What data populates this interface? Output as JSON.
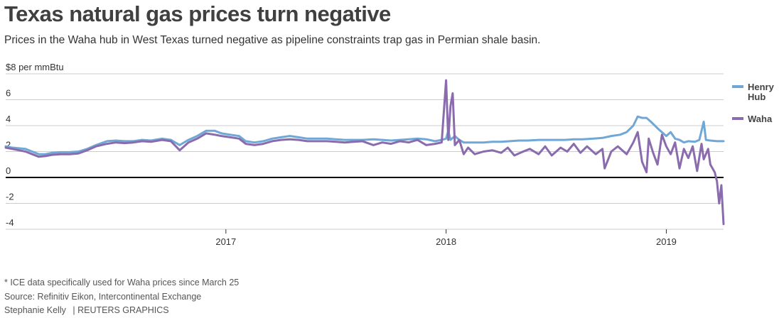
{
  "title": "Texas natural gas prices turn negative",
  "subtitle": "Prices in the Waha hub in West Texas turned negative as pipeline constraints trap gas in Permian shale basin.",
  "footer": {
    "note": "* ICE data specifically used for Waha prices since March 25",
    "source": "Source: Refinitiv Eikon, Intercontinental Exchange",
    "credit": "Stephanie Kelly",
    "agency": "| REUTERS GRAPHICS"
  },
  "colors": {
    "henry_hub": "#6FA8D6",
    "waha": "#8A6BAE",
    "zero_line": "#000000",
    "grid": "#cccccc"
  },
  "chart_data": {
    "type": "line",
    "title": "Texas natural gas prices turn negative",
    "ylabel": "$8 per mmBtu",
    "ylim": [
      -4,
      8
    ],
    "yticks": [
      {
        "value": 8,
        "label": "$8 per mmBtu"
      },
      {
        "value": 6,
        "label": "6"
      },
      {
        "value": 4,
        "label": "4"
      },
      {
        "value": 2,
        "label": "2"
      },
      {
        "value": 0,
        "label": "0"
      },
      {
        "value": -2,
        "label": "-2"
      },
      {
        "value": -4,
        "label": "-4"
      }
    ],
    "xlim": [
      2016.0,
      2019.26
    ],
    "xticks": [
      {
        "value": 2017,
        "label": "2017"
      },
      {
        "value": 2018,
        "label": "2018"
      },
      {
        "value": 2019,
        "label": "2019"
      }
    ],
    "grid": true,
    "legend_position": "right",
    "series": [
      {
        "name": "Henry Hub",
        "color": "#6FA8D6",
        "points": [
          [
            2016.0,
            2.4
          ],
          [
            2016.03,
            2.3
          ],
          [
            2016.06,
            2.25
          ],
          [
            2016.09,
            2.2
          ],
          [
            2016.12,
            2.0
          ],
          [
            2016.15,
            1.8
          ],
          [
            2016.18,
            1.8
          ],
          [
            2016.21,
            1.9
          ],
          [
            2016.25,
            1.95
          ],
          [
            2016.29,
            1.95
          ],
          [
            2016.33,
            2.0
          ],
          [
            2016.37,
            2.2
          ],
          [
            2016.41,
            2.5
          ],
          [
            2016.46,
            2.8
          ],
          [
            2016.5,
            2.85
          ],
          [
            2016.54,
            2.8
          ],
          [
            2016.58,
            2.8
          ],
          [
            2016.62,
            2.9
          ],
          [
            2016.66,
            2.85
          ],
          [
            2016.71,
            3.0
          ],
          [
            2016.75,
            2.9
          ],
          [
            2016.79,
            2.5
          ],
          [
            2016.83,
            2.9
          ],
          [
            2016.87,
            3.2
          ],
          [
            2016.91,
            3.6
          ],
          [
            2016.95,
            3.6
          ],
          [
            2016.98,
            3.4
          ],
          [
            2017.02,
            3.3
          ],
          [
            2017.06,
            3.2
          ],
          [
            2017.09,
            2.8
          ],
          [
            2017.13,
            2.7
          ],
          [
            2017.17,
            2.8
          ],
          [
            2017.21,
            3.0
          ],
          [
            2017.25,
            3.1
          ],
          [
            2017.29,
            3.2
          ],
          [
            2017.33,
            3.1
          ],
          [
            2017.37,
            3.0
          ],
          [
            2017.42,
            3.0
          ],
          [
            2017.46,
            3.0
          ],
          [
            2017.5,
            2.95
          ],
          [
            2017.54,
            2.9
          ],
          [
            2017.58,
            2.9
          ],
          [
            2017.62,
            2.9
          ],
          [
            2017.67,
            2.95
          ],
          [
            2017.71,
            2.9
          ],
          [
            2017.75,
            2.85
          ],
          [
            2017.79,
            2.9
          ],
          [
            2017.83,
            2.95
          ],
          [
            2017.87,
            3.0
          ],
          [
            2017.91,
            2.95
          ],
          [
            2017.95,
            2.8
          ],
          [
            2017.98,
            2.9
          ],
          [
            2018.0,
            3.0
          ],
          [
            2018.01,
            3.6
          ],
          [
            2018.02,
            2.9
          ],
          [
            2018.04,
            3.2
          ],
          [
            2018.06,
            2.9
          ],
          [
            2018.08,
            2.7
          ],
          [
            2018.12,
            2.7
          ],
          [
            2018.17,
            2.7
          ],
          [
            2018.21,
            2.75
          ],
          [
            2018.25,
            2.75
          ],
          [
            2018.29,
            2.8
          ],
          [
            2018.33,
            2.85
          ],
          [
            2018.37,
            2.85
          ],
          [
            2018.42,
            2.9
          ],
          [
            2018.46,
            2.9
          ],
          [
            2018.5,
            2.9
          ],
          [
            2018.54,
            2.9
          ],
          [
            2018.58,
            2.95
          ],
          [
            2018.62,
            2.95
          ],
          [
            2018.67,
            3.0
          ],
          [
            2018.71,
            3.05
          ],
          [
            2018.75,
            3.2
          ],
          [
            2018.79,
            3.3
          ],
          [
            2018.82,
            3.5
          ],
          [
            2018.85,
            4.0
          ],
          [
            2018.87,
            4.7
          ],
          [
            2018.89,
            4.6
          ],
          [
            2018.91,
            4.6
          ],
          [
            2018.93,
            4.3
          ],
          [
            2018.96,
            3.8
          ],
          [
            2019.0,
            3.2
          ],
          [
            2019.02,
            3.5
          ],
          [
            2019.04,
            3.0
          ],
          [
            2019.06,
            2.9
          ],
          [
            2019.08,
            2.7
          ],
          [
            2019.1,
            2.8
          ],
          [
            2019.13,
            2.75
          ],
          [
            2019.15,
            2.9
          ],
          [
            2019.17,
            4.3
          ],
          [
            2019.18,
            2.9
          ],
          [
            2019.2,
            2.85
          ],
          [
            2019.23,
            2.8
          ],
          [
            2019.26,
            2.8
          ]
        ]
      },
      {
        "name": "Waha",
        "color": "#8A6BAE",
        "points": [
          [
            2016.0,
            2.3
          ],
          [
            2016.03,
            2.2
          ],
          [
            2016.06,
            2.1
          ],
          [
            2016.09,
            2.0
          ],
          [
            2016.12,
            1.8
          ],
          [
            2016.15,
            1.6
          ],
          [
            2016.18,
            1.65
          ],
          [
            2016.21,
            1.75
          ],
          [
            2016.25,
            1.8
          ],
          [
            2016.29,
            1.8
          ],
          [
            2016.33,
            1.85
          ],
          [
            2016.37,
            2.1
          ],
          [
            2016.41,
            2.4
          ],
          [
            2016.46,
            2.6
          ],
          [
            2016.5,
            2.7
          ],
          [
            2016.54,
            2.65
          ],
          [
            2016.58,
            2.7
          ],
          [
            2016.62,
            2.8
          ],
          [
            2016.66,
            2.75
          ],
          [
            2016.71,
            2.9
          ],
          [
            2016.75,
            2.8
          ],
          [
            2016.79,
            2.1
          ],
          [
            2016.83,
            2.7
          ],
          [
            2016.87,
            3.0
          ],
          [
            2016.91,
            3.4
          ],
          [
            2016.95,
            3.3
          ],
          [
            2016.98,
            3.2
          ],
          [
            2017.02,
            3.1
          ],
          [
            2017.06,
            3.0
          ],
          [
            2017.09,
            2.6
          ],
          [
            2017.13,
            2.5
          ],
          [
            2017.17,
            2.6
          ],
          [
            2017.21,
            2.8
          ],
          [
            2017.25,
            2.9
          ],
          [
            2017.29,
            2.95
          ],
          [
            2017.33,
            2.9
          ],
          [
            2017.37,
            2.8
          ],
          [
            2017.42,
            2.8
          ],
          [
            2017.46,
            2.8
          ],
          [
            2017.5,
            2.75
          ],
          [
            2017.54,
            2.7
          ],
          [
            2017.58,
            2.75
          ],
          [
            2017.62,
            2.8
          ],
          [
            2017.67,
            2.5
          ],
          [
            2017.71,
            2.7
          ],
          [
            2017.75,
            2.6
          ],
          [
            2017.79,
            2.8
          ],
          [
            2017.83,
            2.7
          ],
          [
            2017.87,
            2.9
          ],
          [
            2017.91,
            2.5
          ],
          [
            2017.95,
            2.6
          ],
          [
            2017.98,
            2.7
          ],
          [
            2018.0,
            7.5
          ],
          [
            2018.01,
            2.9
          ],
          [
            2018.02,
            5.5
          ],
          [
            2018.03,
            6.5
          ],
          [
            2018.04,
            2.5
          ],
          [
            2018.06,
            2.9
          ],
          [
            2018.08,
            1.8
          ],
          [
            2018.1,
            2.3
          ],
          [
            2018.13,
            1.8
          ],
          [
            2018.17,
            2.0
          ],
          [
            2018.21,
            2.1
          ],
          [
            2018.25,
            1.9
          ],
          [
            2018.28,
            2.3
          ],
          [
            2018.31,
            1.7
          ],
          [
            2018.35,
            2.0
          ],
          [
            2018.38,
            2.2
          ],
          [
            2018.42,
            1.8
          ],
          [
            2018.45,
            2.4
          ],
          [
            2018.48,
            1.7
          ],
          [
            2018.52,
            2.3
          ],
          [
            2018.55,
            2.0
          ],
          [
            2018.58,
            2.6
          ],
          [
            2018.61,
            1.9
          ],
          [
            2018.64,
            2.4
          ],
          [
            2018.68,
            1.8
          ],
          [
            2018.71,
            2.2
          ],
          [
            2018.72,
            0.7
          ],
          [
            2018.75,
            2.0
          ],
          [
            2018.78,
            2.4
          ],
          [
            2018.82,
            1.8
          ],
          [
            2018.85,
            2.7
          ],
          [
            2018.87,
            3.5
          ],
          [
            2018.89,
            1.2
          ],
          [
            2018.91,
            0.4
          ],
          [
            2018.92,
            3.0
          ],
          [
            2018.94,
            1.9
          ],
          [
            2018.96,
            1.0
          ],
          [
            2018.98,
            3.3
          ],
          [
            2019.0,
            2.4
          ],
          [
            2019.02,
            1.8
          ],
          [
            2019.04,
            2.7
          ],
          [
            2019.06,
            0.7
          ],
          [
            2019.08,
            2.2
          ],
          [
            2019.1,
            1.5
          ],
          [
            2019.12,
            2.4
          ],
          [
            2019.14,
            0.5
          ],
          [
            2019.16,
            2.6
          ],
          [
            2019.17,
            1.4
          ],
          [
            2019.19,
            2.2
          ],
          [
            2019.2,
            1.0
          ],
          [
            2019.22,
            0.4
          ],
          [
            2019.23,
            -0.3
          ],
          [
            2019.24,
            -2.0
          ],
          [
            2019.25,
            -0.6
          ],
          [
            2019.26,
            -3.6
          ]
        ]
      }
    ]
  }
}
